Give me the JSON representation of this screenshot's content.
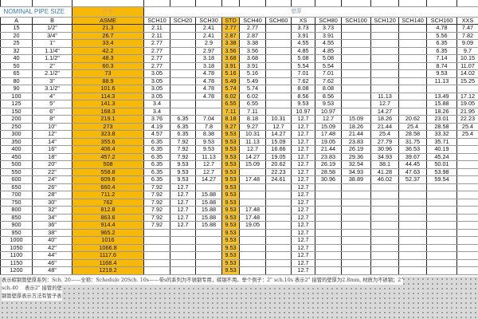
{
  "group_headers": {
    "nominal_pipe_size": "NOMINAL PIPE SIZE",
    "outer_diameter": "外径",
    "wall_thickness": "壁厚"
  },
  "columns": [
    "A",
    "B",
    "ASME",
    "SCH10",
    "SCH20",
    "SCH30",
    "STD",
    "SCH40",
    "SCH60",
    "XS",
    "SCH80",
    "SCH100",
    "SCH120",
    "SCH140",
    "SCH160",
    "XXS"
  ],
  "highlight_color": "#f6b90a",
  "rows": [
    [
      "15",
      "1/2\"",
      "21.3",
      "2.11",
      "",
      "2.41",
      "2.77",
      "2.77",
      "",
      "3.73",
      "3.73",
      "",
      "",
      "",
      "4.78",
      "7.47"
    ],
    [
      "20",
      "3/4\"",
      "26.7",
      "2.11",
      "",
      "2.41",
      "2.87",
      "2.87",
      "",
      "3.91",
      "3.91",
      "",
      "",
      "",
      "5.56",
      "7.82"
    ],
    [
      "25",
      "1\"",
      "33.4",
      "2.77",
      "",
      "2.9",
      "3.38",
      "3.38",
      "",
      "4.55",
      "4.55",
      "",
      "",
      "",
      "6.35",
      "9.09"
    ],
    [
      "32",
      "1.1/4\"",
      "42.2",
      "2.77",
      "",
      "2.97",
      "3.56",
      "3.56",
      "",
      "4.85",
      "4.85",
      "",
      "",
      "",
      "6.35",
      "9.7"
    ],
    [
      "40",
      "1.1/2\"",
      "48.3",
      "2.77",
      "",
      "3.18",
      "3.68",
      "3.68",
      "",
      "5.08",
      "5.08",
      "",
      "",
      "",
      "7.14",
      "10.15"
    ],
    [
      "50",
      "2\"",
      "60.3",
      "2.77",
      "",
      "3.18",
      "3.91",
      "3.91",
      "",
      "5.54",
      "5.54",
      "",
      "",
      "",
      "8.74",
      "11.07"
    ],
    [
      "65",
      "2.1/2\"",
      "73",
      "3.05",
      "",
      "4.78",
      "5.16",
      "5.16",
      "",
      "7.01",
      "7.01",
      "",
      "",
      "",
      "9.53",
      "14.02"
    ],
    [
      "80",
      "3\"",
      "88.9",
      "3.05",
      "",
      "4.78",
      "5.49",
      "5.49",
      "",
      "7.62",
      "7.62",
      "",
      "",
      "",
      "11.13",
      "15.25"
    ],
    [
      "90",
      "3.1/2\"",
      "101.6",
      "3.05",
      "",
      "4.78",
      "5.74",
      "5.74",
      "",
      "8.08",
      "8.08",
      "",
      "",
      "",
      "",
      ""
    ],
    [
      "100",
      "4\"",
      "114.3",
      "3.05",
      "",
      "4.78",
      "6.02",
      "6.02",
      "",
      "8.56",
      "8.56",
      "",
      "11.13",
      "",
      "13.49",
      "17.12"
    ],
    [
      "125",
      "5\"",
      "141.3",
      "3.4",
      "",
      "",
      "6.55",
      "6.55",
      "",
      "9.53",
      "9.53",
      "",
      "12.7",
      "",
      "15.88",
      "19.05"
    ],
    [
      "150",
      "6\"",
      "168.3",
      "3.4",
      "",
      "",
      "7.11",
      "7.11",
      "",
      "10.97",
      "10.97",
      "",
      "14.27",
      "",
      "18.26",
      "21.95"
    ],
    [
      "200",
      "8\"",
      "219.1",
      "3.76",
      "6.35",
      "7.04",
      "8.18",
      "8.18",
      "10.31",
      "12.7",
      "12.7",
      "15.09",
      "18.26",
      "20.62",
      "23.01",
      "22.23"
    ],
    [
      "250",
      "10\"",
      "273",
      "4.19",
      "6.35",
      "7.8",
      "9.27",
      "9.27",
      "12.7",
      "12.7",
      "15.09",
      "18.26",
      "21.44",
      "25.4",
      "28.58",
      "25.4"
    ],
    [
      "300",
      "12\"",
      "323.8",
      "4.57",
      "6.35",
      "8.38",
      "9.53",
      "10.31",
      "14.27",
      "12.7",
      "17.48",
      "21.44",
      "25.4",
      "28.58",
      "33.32",
      "25.4"
    ],
    [
      "350",
      "14\"",
      "355.6",
      "6.35",
      "7.92",
      "9.53",
      "9.53",
      "11.13",
      "15.09",
      "12.7",
      "19.05",
      "23.83",
      "27.79",
      "31.75",
      "35.71",
      ""
    ],
    [
      "400",
      "16\"",
      "406.4",
      "6.35",
      "7.92",
      "9.53",
      "9.53",
      "12.7",
      "16.66",
      "12.7",
      "21.44",
      "26.19",
      "30.96",
      "36.53",
      "40.19",
      ""
    ],
    [
      "450",
      "18\"",
      "457.2",
      "6.35",
      "7.92",
      "11.13",
      "9.53",
      "14.27",
      "19.05",
      "12.7",
      "23.83",
      "29.36",
      "34.93",
      "39.67",
      "45.24",
      ""
    ],
    [
      "500",
      "20\"",
      "508",
      "6.35",
      "9.53",
      "12.7",
      "9.53",
      "15.09",
      "20.62",
      "12.7",
      "26.19",
      "32.54",
      "38.1",
      "44.45",
      "50.01",
      ""
    ],
    [
      "550",
      "22\"",
      "558.8",
      "6.35",
      "9.53",
      "12.7",
      "9.53",
      "",
      "22.23",
      "12.7",
      "28.58",
      "34.93",
      "41.28",
      "47.63",
      "53.98",
      ""
    ],
    [
      "600",
      "24\"",
      "609.6",
      "6.35",
      "9.53",
      "14.27",
      "9.53",
      "17.48",
      "24.61",
      "12.7",
      "30.96",
      "38.89",
      "46.02",
      "52.37",
      "59.54",
      ""
    ],
    [
      "650",
      "26\"",
      "660.4",
      "7.92",
      "12.7",
      "",
      "9.53",
      "",
      "",
      "12.7",
      "",
      "",
      "",
      "",
      "",
      ""
    ],
    [
      "700",
      "28\"",
      "711.2",
      "7.92",
      "12.7",
      "15.88",
      "9.53",
      "",
      "",
      "12.7",
      "",
      "",
      "",
      "",
      "",
      ""
    ],
    [
      "750",
      "30\"",
      "762",
      "7.92",
      "12.7",
      "15.88",
      "9.53",
      "",
      "",
      "12.7",
      "",
      "",
      "",
      "",
      "",
      ""
    ],
    [
      "800",
      "32\"",
      "812.8",
      "7.92",
      "12.7",
      "15.88",
      "9.53",
      "17.48",
      "",
      "12.7",
      "",
      "",
      "",
      "",
      "",
      ""
    ],
    [
      "850",
      "34\"",
      "863.6",
      "7.92",
      "12.7",
      "15.88",
      "9.53",
      "17.48",
      "",
      "12.7",
      "",
      "",
      "",
      "",
      "",
      ""
    ],
    [
      "900",
      "36\"",
      "914.4",
      "7.92",
      "12.7",
      "15.88",
      "9.53",
      "19.05",
      "",
      "12.7",
      "",
      "",
      "",
      "",
      "",
      ""
    ],
    [
      "950",
      "38\"",
      "965.2",
      "",
      "",
      "",
      "9.53",
      "",
      "",
      "12.7",
      "",
      "",
      "",
      "",
      "",
      ""
    ],
    [
      "1000",
      "40\"",
      "1016",
      "",
      "",
      "",
      "9.53",
      "",
      "",
      "12.7",
      "",
      "",
      "",
      "",
      "",
      ""
    ],
    [
      "1050",
      "42\"",
      "1066.8",
      "",
      "",
      "",
      "9.53",
      "",
      "",
      "12.7",
      "",
      "",
      "",
      "",
      "",
      ""
    ],
    [
      "1100",
      "44\"",
      "1117.6",
      "",
      "",
      "",
      "9.53",
      "",
      "",
      "12.7",
      "",
      "",
      "",
      "",
      "",
      ""
    ],
    [
      "1150",
      "46\"",
      "1168.4",
      "",
      "",
      "",
      "9.53",
      "",
      "",
      "12.7",
      "",
      "",
      "",
      "",
      "",
      ""
    ],
    [
      "1200",
      "48\"",
      "1219.2",
      "",
      "",
      "",
      "9.53",
      "",
      "",
      "12.7",
      "",
      "",
      "",
      "",
      "",
      ""
    ]
  ],
  "footer": {
    "line1": "表示碳钢管壁厚系列：Sch. 20——全称：Schedule 20Sch. 10s——带s的系列为不锈钢专用，碳钢不用。举个例子：2\" sch.10s 表示2\" 接管的壁厚为2.8mm, 材质为不锈钢；2\"",
    "line2": "sch.40 　表示2\" 接管的壁",
    "line3": "钢管壁厚表示方法有管子表"
  }
}
